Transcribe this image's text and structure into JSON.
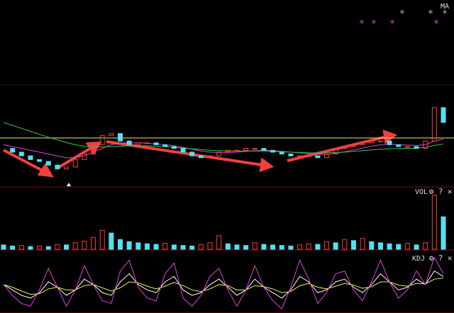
{
  "chart_data": [
    {
      "type": "candlestick",
      "title": "MA",
      "mark": "*",
      "values": [
        10,
        9,
        8,
        7,
        6.5,
        5.5,
        4.5,
        5,
        7,
        8.5,
        11,
        13.5,
        14,
        12,
        11,
        11.5,
        11.5,
        11,
        10.5,
        10,
        9,
        8,
        7.5,
        8,
        9,
        9.5,
        9.5,
        10,
        10,
        9.5,
        9,
        8.5,
        8,
        8,
        8,
        7.5,
        8.5,
        10,
        10.5,
        11,
        11.5,
        12,
        12,
        11,
        10.5,
        10.5,
        10,
        12,
        21,
        17
      ],
      "color_up": "#ff3b3b",
      "color_down": "#54e0f0",
      "series": [
        {
          "color": "#e040e0",
          "values": [
            11,
            10.5,
            10,
            9.5,
            9,
            8.5,
            8,
            7.5,
            7.5,
            8,
            9,
            10,
            11,
            11.5,
            11.5,
            11.5,
            11.4,
            11.2,
            11,
            10.7,
            10.3,
            9.8,
            9.3,
            9,
            8.9,
            8.9,
            9,
            9.2,
            9.4,
            9.5,
            9.4,
            9.2,
            9,
            8.8,
            8.6,
            8.4,
            8.4,
            8.7,
            9.1,
            9.6,
            10.1,
            10.6,
            11,
            11.1,
            11,
            10.9,
            10.8,
            11,
            12,
            12.5
          ]
        },
        {
          "color": "#2ecc40",
          "values": [
            17,
            16.2,
            15.4,
            14.6,
            13.8,
            13,
            12.3,
            11.6,
            11,
            10.6,
            10.4,
            10.4,
            10.5,
            10.6,
            10.7,
            10.7,
            10.7,
            10.6,
            10.5,
            10.3,
            10.1,
            9.9,
            9.7,
            9.5,
            9.4,
            9.3,
            9.3,
            9.3,
            9.3,
            9.3,
            9.2,
            9.1,
            9,
            8.9,
            8.8,
            8.8,
            8.8,
            8.9,
            9,
            9.2,
            9.4,
            9.6,
            9.8,
            9.9,
            10,
            10,
            10.1,
            10.3,
            10.8,
            11.2
          ]
        }
      ],
      "hline": 12.8,
      "hline_color": "#e8e870",
      "ylim": [
        0,
        50
      ]
    },
    {
      "type": "bar",
      "title": "VOL",
      "values": [
        8,
        6,
        7,
        5,
        6,
        5,
        9,
        8,
        12,
        15,
        22,
        35,
        30,
        18,
        14,
        12,
        10,
        9,
        11,
        8,
        7,
        6,
        9,
        12,
        25,
        10,
        8,
        7,
        12,
        9,
        8,
        7,
        6,
        8,
        10,
        9,
        14,
        12,
        18,
        16,
        20,
        14,
        12,
        10,
        9,
        11,
        8,
        12,
        100,
        60
      ],
      "ylim": [
        0,
        110
      ],
      "color_up": "#ff3b3b",
      "color_down": "#54e0f0",
      "icons": [
        "⚙",
        "?",
        "✕"
      ]
    },
    {
      "type": "line",
      "title": "KDJ",
      "series": [
        {
          "color": "#ffffff",
          "values": [
            50,
            40,
            30,
            25,
            35,
            55,
            45,
            30,
            40,
            60,
            50,
            35,
            30,
            55,
            70,
            50,
            40,
            35,
            55,
            65,
            40,
            30,
            35,
            50,
            60,
            45,
            30,
            40,
            60,
            45,
            35,
            25,
            40,
            65,
            55,
            35,
            40,
            55,
            60,
            45,
            35,
            50,
            70,
            55,
            40,
            45,
            60,
            50,
            75,
            65
          ]
        },
        {
          "color": "#f0f050",
          "values": [
            50,
            45,
            38,
            32,
            33,
            42,
            45,
            40,
            40,
            48,
            50,
            44,
            38,
            44,
            55,
            53,
            47,
            42,
            47,
            54,
            48,
            40,
            37,
            42,
            50,
            48,
            40,
            40,
            48,
            46,
            42,
            35,
            37,
            48,
            52,
            45,
            42,
            47,
            52,
            49,
            43,
            46,
            55,
            55,
            49,
            47,
            52,
            51,
            60,
            62
          ]
        },
        {
          "color": "#e040e0",
          "values": [
            50,
            30,
            15,
            10,
            40,
            80,
            45,
            10,
            40,
            85,
            50,
            20,
            15,
            75,
            95,
            45,
            25,
            20,
            70,
            90,
            25,
            10,
            30,
            65,
            80,
            40,
            10,
            40,
            85,
            45,
            20,
            5,
            45,
            95,
            60,
            15,
            35,
            70,
            75,
            40,
            20,
            55,
            95,
            55,
            25,
            40,
            75,
            50,
            100,
            70
          ]
        }
      ],
      "ylim": [
        0,
        110
      ],
      "icons": [
        "⚙",
        "?",
        "✕"
      ]
    }
  ]
}
